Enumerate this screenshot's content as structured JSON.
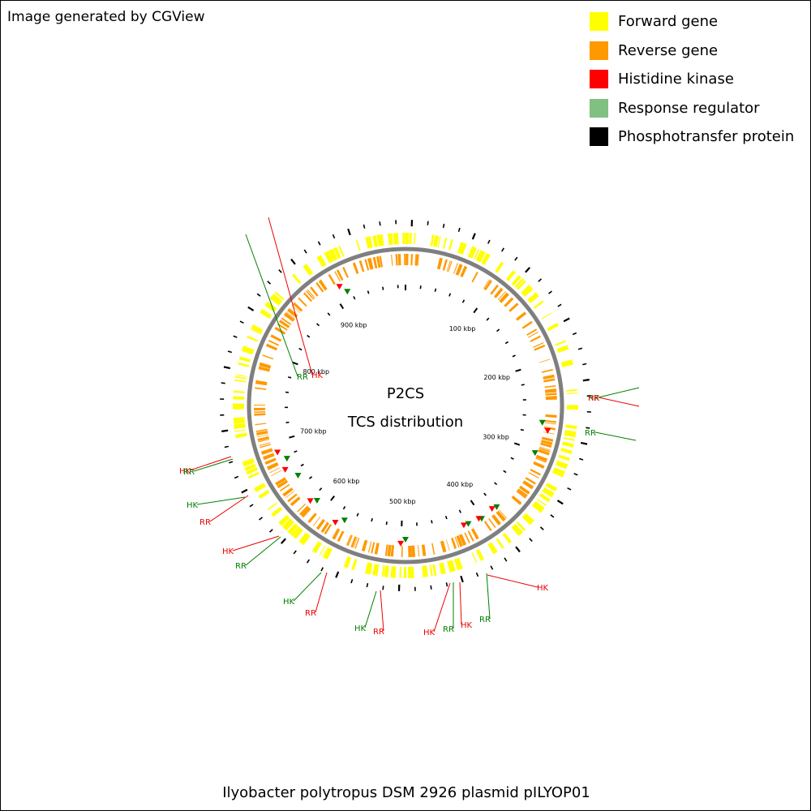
{
  "credit": "Image generated by CGView",
  "legend": [
    {
      "label": "Forward gene",
      "color": "#ffff00"
    },
    {
      "label": "Reverse gene",
      "color": "#ff9900"
    },
    {
      "label": "Histidine kinase",
      "color": "#ff0000"
    },
    {
      "label": "Response regulator",
      "color": "#80c080"
    },
    {
      "label": "Phosphotransfer protein",
      "color": "#000000"
    }
  ],
  "center_title": {
    "line1": "P2CS",
    "line2": "TCS distribution"
  },
  "caption": "Ilyobacter polytropus DSM 2926 plasmid pILYOP01",
  "colors": {
    "backbone": "#7f7f7f",
    "hk_label": "#ee0000",
    "rr_label": "#008000",
    "ticks": "#000000"
  },
  "ruler": {
    "unit": "kbp",
    "labels": [
      "100 kbp",
      "200 kbp",
      "300 kbp",
      "400 kbp",
      "500 kbp",
      "600 kbp",
      "700 kbp",
      "800 kbp",
      "900 kbp"
    ]
  },
  "features": [
    {
      "type": "RR",
      "label": "RR"
    },
    {
      "type": "HK",
      "label": "HK"
    },
    {
      "type": "RR",
      "label": "RR"
    },
    {
      "type": "HK",
      "label": "HK"
    },
    {
      "type": "RR",
      "label": "RR"
    },
    {
      "type": "HK",
      "label": "HK"
    },
    {
      "type": "RR",
      "label": "RR"
    },
    {
      "type": "HK",
      "label": "HK"
    },
    {
      "type": "RR",
      "label": "RR"
    },
    {
      "type": "HK",
      "label": "HK"
    },
    {
      "type": "RR",
      "label": "RR"
    },
    {
      "type": "HK",
      "label": "HK"
    },
    {
      "type": "RR",
      "label": "RR"
    },
    {
      "type": "HK",
      "label": "HK"
    },
    {
      "type": "RR",
      "label": "RR"
    },
    {
      "type": "HK",
      "label": "HK"
    },
    {
      "type": "RR",
      "label": "RR"
    },
    {
      "type": "HK",
      "label": "HK"
    },
    {
      "type": "RR",
      "label": "RR"
    },
    {
      "type": "HK",
      "label": "HK"
    }
  ]
}
